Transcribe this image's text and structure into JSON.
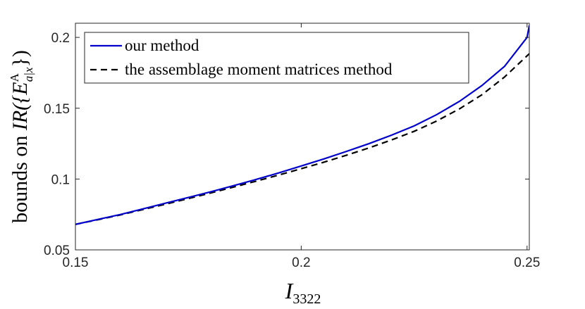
{
  "chart_data": {
    "type": "line",
    "xlabel_main": "I",
    "xlabel_sub": "3322",
    "ylabel_prefix": "bounds on ",
    "ylabel_math": "IR({E",
    "ylabel_sup": "A",
    "ylabel_sub": "a|x",
    "ylabel_suffix": "})",
    "xlim": [
      0.15,
      0.2505
    ],
    "ylim": [
      0.05,
      0.21
    ],
    "xticks": [
      0.15,
      0.2,
      0.25
    ],
    "xtick_labels": [
      "0.15",
      "0.2",
      "0.25"
    ],
    "yticks": [
      0.05,
      0.1,
      0.15,
      0.2
    ],
    "ytick_labels": [
      "0.05",
      "0.1",
      "0.15",
      "0.2"
    ],
    "legend_position": "top-left",
    "series": [
      {
        "name": "our method",
        "color": "#0000cc",
        "style": "solid",
        "x": [
          0.15,
          0.155,
          0.16,
          0.165,
          0.17,
          0.175,
          0.18,
          0.185,
          0.19,
          0.195,
          0.2,
          0.205,
          0.21,
          0.215,
          0.22,
          0.225,
          0.23,
          0.235,
          0.24,
          0.245,
          0.25,
          0.2505
        ],
        "y": [
          0.068,
          0.0715,
          0.075,
          0.079,
          0.083,
          0.087,
          0.091,
          0.0953,
          0.0997,
          0.1043,
          0.1092,
          0.1142,
          0.1195,
          0.125,
          0.131,
          0.1375,
          0.1455,
          0.1548,
          0.166,
          0.1795,
          0.2,
          0.2085
        ]
      },
      {
        "name": "the assemblage moment matrices method",
        "color": "#000000",
        "style": "dashed",
        "x": [
          0.15,
          0.155,
          0.16,
          0.165,
          0.17,
          0.175,
          0.18,
          0.185,
          0.19,
          0.195,
          0.2,
          0.205,
          0.21,
          0.215,
          0.22,
          0.225,
          0.23,
          0.235,
          0.24,
          0.245,
          0.25,
          0.2505
        ],
        "y": [
          0.068,
          0.0713,
          0.0747,
          0.0785,
          0.0823,
          0.0862,
          0.0902,
          0.0943,
          0.0985,
          0.1028,
          0.1073,
          0.1119,
          0.1168,
          0.122,
          0.1276,
          0.1337,
          0.141,
          0.1495,
          0.1595,
          0.172,
          0.187,
          0.1885
        ]
      }
    ]
  }
}
